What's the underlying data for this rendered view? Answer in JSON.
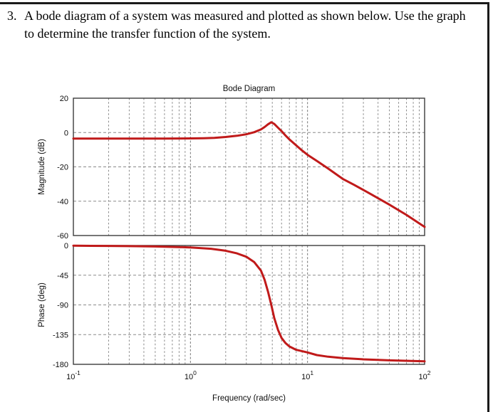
{
  "problem": {
    "number": "3.",
    "text": "A bode diagram of a system was measured and plotted as shown below. Use the graph to determine the transfer function of the system."
  },
  "chart_data": [
    {
      "type": "line",
      "id": "magnitude",
      "title": "Bode Diagram",
      "ylabel": "Magnitude (dB)",
      "x_scale": "log",
      "xlim": [
        0.1,
        100
      ],
      "ylim": [
        -60,
        20
      ],
      "yticks": [
        20,
        0,
        -20,
        -40,
        -60
      ],
      "xtick_exponents": [
        -1,
        0,
        1,
        2
      ],
      "grid": true,
      "line_color": "#c01a1a",
      "series": [
        {
          "name": "magnitude_dB",
          "x": [
            0.1,
            0.15,
            0.2,
            0.3,
            0.4,
            0.6,
            0.8,
            1,
            1.3,
            1.6,
            2,
            2.5,
            3,
            3.5,
            4,
            4.3,
            4.6,
            4.9,
            5.2,
            5.6,
            6,
            6.5,
            7,
            8,
            9,
            10,
            12,
            15,
            20,
            25,
            34,
            50,
            70,
            100
          ],
          "y": [
            -3.5,
            -3.5,
            -3.5,
            -3.5,
            -3.5,
            -3.5,
            -3.45,
            -3.4,
            -3.3,
            -3.1,
            -2.6,
            -1.9,
            -1.0,
            0.2,
            1.8,
            3.2,
            4.8,
            6.0,
            5.0,
            2.8,
            0.8,
            -1.8,
            -4.0,
            -7.5,
            -10.5,
            -13,
            -16.5,
            -21,
            -27,
            -30.5,
            -35.5,
            -42,
            -48,
            -55
          ]
        }
      ]
    },
    {
      "type": "line",
      "id": "phase",
      "ylabel": "Phase (deg)",
      "xlabel": "Frequency  (rad/sec)",
      "x_scale": "log",
      "xlim": [
        0.1,
        100
      ],
      "ylim": [
        -180,
        0
      ],
      "yticks": [
        0,
        -45,
        -90,
        -135,
        -180
      ],
      "xtick_exponents": [
        -1,
        0,
        1,
        2
      ],
      "grid": true,
      "line_color": "#c01a1a",
      "series": [
        {
          "name": "phase_deg",
          "x": [
            0.1,
            0.2,
            0.3,
            0.5,
            0.8,
            1,
            1.5,
            2,
            2.5,
            3,
            3.5,
            4,
            4.3,
            4.6,
            4.9,
            5.2,
            5.6,
            6,
            6.5,
            7,
            8,
            10,
            12,
            15,
            20,
            30,
            50,
            100
          ],
          "y": [
            -0.3,
            -0.6,
            -1,
            -1.5,
            -2.4,
            -3,
            -5,
            -8,
            -12,
            -17,
            -25,
            -38,
            -52,
            -70,
            -90,
            -110,
            -128,
            -140,
            -148,
            -153,
            -158,
            -162,
            -166,
            -168.5,
            -170.5,
            -172.5,
            -174,
            -175.5
          ]
        }
      ]
    }
  ],
  "colors": {
    "curve": "#c01a1a",
    "grid": "#8a8a8a",
    "decade_grid": "#777777",
    "box": "#3c3c3c"
  }
}
